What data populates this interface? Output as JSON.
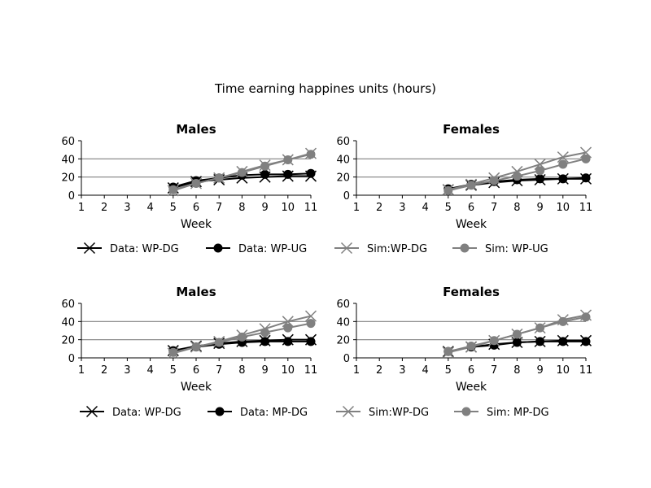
{
  "figure_title": "Time earning happines units (hours)",
  "colors": {
    "data": "#000000",
    "sim": "#808080",
    "gridline": "#808080"
  },
  "chart_data": [
    {
      "type": "line",
      "title": "Males",
      "xlabel": "Week",
      "ylabel": "",
      "xlim": [
        1,
        11
      ],
      "ylim": [
        0,
        60
      ],
      "xticks": [
        "1",
        "2",
        "3",
        "4",
        "5",
        "6",
        "7",
        "8",
        "9",
        "10",
        "11"
      ],
      "yticks": [
        "0",
        "20",
        "40",
        "60"
      ],
      "hlines": [
        20,
        40
      ],
      "legend_position": "below",
      "x": [
        5,
        6,
        7,
        8,
        9,
        10,
        11
      ],
      "series": [
        {
          "name": "Data: WP-DG",
          "color": "#000000",
          "marker": "x",
          "values": [
            8,
            15,
            17,
            19,
            20,
            21,
            21
          ]
        },
        {
          "name": "Data: WP-UG",
          "color": "#000000",
          "marker": "o",
          "values": [
            9,
            16,
            19,
            22,
            23,
            23,
            24
          ]
        },
        {
          "name": "Sim:WP-DG",
          "color": "#808080",
          "marker": "x",
          "values": [
            5,
            13,
            19,
            26,
            33,
            39,
            46
          ]
        },
        {
          "name": "Sim: WP-UG",
          "color": "#808080",
          "marker": "o",
          "values": [
            6,
            13,
            19,
            25,
            32,
            39,
            45
          ]
        }
      ]
    },
    {
      "type": "line",
      "title": "Females",
      "xlabel": "Week",
      "ylabel": "",
      "xlim": [
        1,
        11
      ],
      "ylim": [
        0,
        60
      ],
      "xticks": [
        "1",
        "2",
        "3",
        "4",
        "5",
        "6",
        "7",
        "8",
        "9",
        "10",
        "11"
      ],
      "yticks": [
        "0",
        "20",
        "40",
        "60"
      ],
      "hlines": [
        20,
        40
      ],
      "legend_position": "below",
      "x": [
        5,
        6,
        7,
        8,
        9,
        10,
        11
      ],
      "series": [
        {
          "name": "Data: WP-DG",
          "color": "#000000",
          "marker": "x",
          "values": [
            6,
            11,
            14,
            16,
            17,
            18,
            18
          ]
        },
        {
          "name": "Data: WP-UG",
          "color": "#000000",
          "marker": "o",
          "values": [
            7,
            12,
            15,
            17,
            18,
            18,
            19
          ]
        },
        {
          "name": "Sim:WP-DG",
          "color": "#808080",
          "marker": "x",
          "values": [
            6,
            12,
            19,
            26,
            34,
            42,
            47
          ]
        },
        {
          "name": "Sim: WP-UG",
          "color": "#808080",
          "marker": "o",
          "values": [
            5,
            11,
            16,
            21,
            27,
            34,
            40
          ]
        }
      ]
    },
    {
      "type": "line",
      "title": "Males",
      "xlabel": "Week",
      "ylabel": "",
      "xlim": [
        1,
        11
      ],
      "ylim": [
        0,
        60
      ],
      "xticks": [
        "1",
        "2",
        "3",
        "4",
        "5",
        "6",
        "7",
        "8",
        "9",
        "10",
        "11"
      ],
      "yticks": [
        "0",
        "20",
        "40",
        "60"
      ],
      "hlines": [
        20,
        40
      ],
      "legend_position": "below",
      "x": [
        5,
        6,
        7,
        8,
        9,
        10,
        11
      ],
      "series": [
        {
          "name": "Data: WP-DG",
          "color": "#000000",
          "marker": "x",
          "values": [
            8,
            13,
            16,
            18,
            19,
            20,
            20
          ]
        },
        {
          "name": "Data: MP-DG",
          "color": "#000000",
          "marker": "o",
          "values": [
            8,
            12,
            15,
            17,
            18,
            18,
            18
          ]
        },
        {
          "name": "Sim:WP-DG",
          "color": "#808080",
          "marker": "x",
          "values": [
            5,
            12,
            18,
            25,
            32,
            40,
            46
          ]
        },
        {
          "name": "Sim: MP-DG",
          "color": "#808080",
          "marker": "o",
          "values": [
            6,
            12,
            17,
            23,
            28,
            33,
            38
          ]
        }
      ]
    },
    {
      "type": "line",
      "title": "Females",
      "xlabel": "Week",
      "ylabel": "",
      "xlim": [
        1,
        11
      ],
      "ylim": [
        0,
        60
      ],
      "xticks": [
        "1",
        "2",
        "3",
        "4",
        "5",
        "6",
        "7",
        "8",
        "9",
        "10",
        "11"
      ],
      "yticks": [
        "0",
        "20",
        "40",
        "60"
      ],
      "hlines": [
        20,
        40
      ],
      "legend_position": "below",
      "x": [
        5,
        6,
        7,
        8,
        9,
        10,
        11
      ],
      "series": [
        {
          "name": "Data: WP-DG",
          "color": "#000000",
          "marker": "x",
          "values": [
            7,
            12,
            15,
            17,
            18,
            19,
            19
          ]
        },
        {
          "name": "Data: MP-DG",
          "color": "#000000",
          "marker": "o",
          "values": [
            7,
            12,
            14,
            17,
            18,
            18,
            18
          ]
        },
        {
          "name": "Sim:WP-DG",
          "color": "#808080",
          "marker": "x",
          "values": [
            6,
            12,
            19,
            26,
            33,
            42,
            47
          ]
        },
        {
          "name": "Sim: MP-DG",
          "color": "#808080",
          "marker": "o",
          "values": [
            7,
            13,
            19,
            26,
            33,
            40,
            45
          ]
        }
      ]
    }
  ]
}
